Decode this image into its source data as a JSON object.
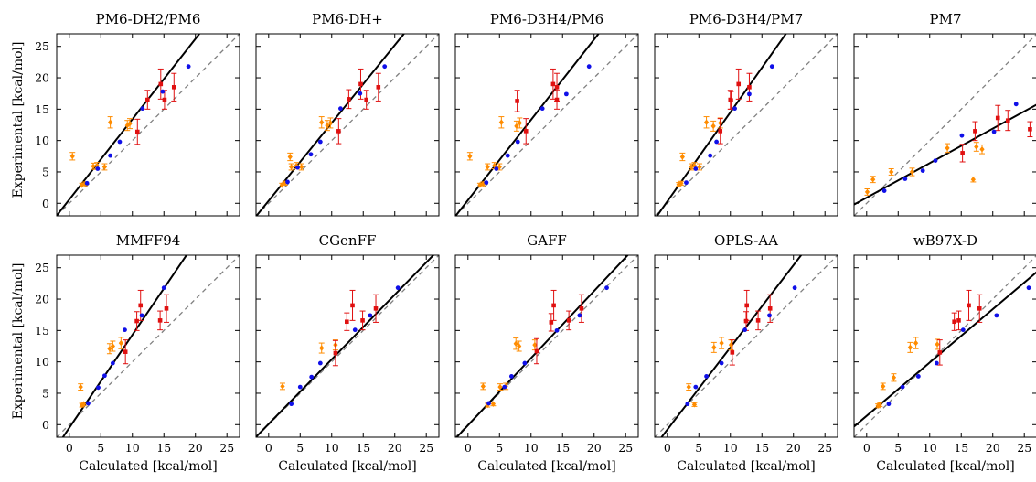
{
  "figure": {
    "ylabel": "Experimental [kcal/mol]",
    "xlabel": "Calculated [kcal/mol]"
  },
  "chart_data": {
    "type": "scatter",
    "xlim": [
      -2,
      27
    ],
    "ylim": [
      -2,
      27
    ],
    "ticks": [
      0,
      5,
      10,
      15,
      20,
      25
    ],
    "series_colors": {
      "blue": "#1010e8",
      "orange": "#ff8c00",
      "red": "#e01010"
    },
    "reference_line": "dashed gray y = x",
    "panels": [
      {
        "title": "PM6-DH2/PM6",
        "fit": {
          "slope": 1.28,
          "intercept": 0.6
        },
        "blue": [
          [
            2.8,
            3.2
          ],
          [
            4.5,
            5.5
          ],
          [
            6.5,
            7.6
          ],
          [
            8.0,
            9.8
          ],
          [
            11.6,
            15.1
          ],
          [
            14.8,
            17.8
          ],
          [
            18.9,
            21.8
          ]
        ],
        "orange": [
          [
            0.5,
            7.5,
            0.6
          ],
          [
            2.0,
            2.9,
            0.3
          ],
          [
            2.5,
            3.1,
            0.3
          ],
          [
            3.8,
            5.9,
            0.5
          ],
          [
            4.4,
            6.0,
            0.5
          ],
          [
            5.6,
            5.8,
            0.5
          ],
          [
            6.5,
            12.9,
            0.9
          ],
          [
            9.2,
            12.4,
            0.8
          ],
          [
            9.6,
            12.7,
            0.8
          ]
        ],
        "red": [
          [
            10.8,
            11.4,
            2.0
          ],
          [
            12.4,
            16.5,
            1.5
          ],
          [
            14.5,
            19.0,
            2.4
          ],
          [
            15.1,
            16.5,
            1.5
          ],
          [
            16.6,
            18.5,
            2.2
          ]
        ]
      },
      {
        "title": "PM6-DH+",
        "fit": {
          "slope": 1.24,
          "intercept": 0.4
        },
        "blue": [
          [
            3.0,
            3.4
          ],
          [
            4.6,
            5.7
          ],
          [
            6.7,
            7.8
          ],
          [
            8.2,
            9.8
          ],
          [
            11.4,
            15.1
          ],
          [
            14.5,
            17.5
          ],
          [
            18.4,
            21.8
          ]
        ],
        "orange": [
          [
            2.1,
            2.9,
            0.3
          ],
          [
            2.6,
            3.2,
            0.3
          ],
          [
            3.4,
            7.4,
            0.6
          ],
          [
            3.6,
            5.8,
            0.5
          ],
          [
            4.4,
            6.0,
            0.5
          ],
          [
            5.2,
            5.8,
            0.5
          ],
          [
            8.4,
            12.9,
            0.9
          ],
          [
            9.3,
            12.4,
            0.8
          ],
          [
            9.8,
            12.8,
            0.8
          ]
        ],
        "red": [
          [
            11.1,
            11.5,
            2.0
          ],
          [
            12.7,
            16.6,
            1.5
          ],
          [
            14.6,
            19.0,
            2.4
          ],
          [
            15.5,
            16.5,
            1.5
          ],
          [
            17.4,
            18.5,
            2.2
          ]
        ]
      },
      {
        "title": "PM6-D3H4/PM6",
        "fit": {
          "slope": 1.28,
          "intercept": 0.5
        },
        "blue": [
          [
            2.9,
            3.3
          ],
          [
            4.5,
            5.5
          ],
          [
            6.3,
            7.6
          ],
          [
            7.9,
            9.8
          ],
          [
            11.8,
            15.1
          ],
          [
            15.6,
            17.4
          ],
          [
            19.2,
            21.8
          ]
        ],
        "orange": [
          [
            0.3,
            7.5,
            0.6
          ],
          [
            1.9,
            2.9,
            0.3
          ],
          [
            2.4,
            3.1,
            0.3
          ],
          [
            3.1,
            5.8,
            0.5
          ],
          [
            4.2,
            6.0,
            0.5
          ],
          [
            5.0,
            5.8,
            0.5
          ],
          [
            5.3,
            12.9,
            0.9
          ],
          [
            7.7,
            12.3,
            0.8
          ],
          [
            8.2,
            12.8,
            0.8
          ]
        ],
        "red": [
          [
            9.2,
            11.5,
            2.0
          ],
          [
            7.8,
            16.3,
            1.7
          ],
          [
            13.5,
            19.0,
            2.4
          ],
          [
            14.1,
            16.5,
            1.5
          ],
          [
            14.1,
            18.5,
            2.2
          ]
        ]
      },
      {
        "title": "PM6-D3H4/PM7",
        "fit": {
          "slope": 1.42,
          "intercept": 0.3
        },
        "blue": [
          [
            3.0,
            3.3
          ],
          [
            4.5,
            5.5
          ],
          [
            6.8,
            7.6
          ],
          [
            7.8,
            9.8
          ],
          [
            10.7,
            15.1
          ],
          [
            13.0,
            17.4
          ],
          [
            16.6,
            21.8
          ]
        ],
        "orange": [
          [
            1.8,
            3.0,
            0.3
          ],
          [
            2.2,
            3.2,
            0.3
          ],
          [
            2.4,
            7.4,
            0.6
          ],
          [
            3.8,
            5.8,
            0.5
          ],
          [
            4.3,
            6.0,
            0.5
          ],
          [
            5.1,
            5.8,
            0.5
          ],
          [
            6.2,
            12.9,
            0.9
          ],
          [
            7.3,
            12.3,
            0.8
          ],
          [
            8.4,
            12.8,
            0.8
          ]
        ],
        "red": [
          [
            8.4,
            11.5,
            2.0
          ],
          [
            10.0,
            16.5,
            1.5
          ],
          [
            11.3,
            19.0,
            2.4
          ],
          [
            10.1,
            16.4,
            1.4
          ],
          [
            13.0,
            18.5,
            2.2
          ]
        ]
      },
      {
        "title": "PM7",
        "fit": {
          "slope": 0.55,
          "intercept": 0.9
        },
        "blue": [
          [
            2.8,
            2.0
          ],
          [
            6.1,
            3.9
          ],
          [
            8.9,
            5.2
          ],
          [
            10.9,
            6.8
          ],
          [
            15.1,
            10.8
          ],
          [
            20.2,
            11.4
          ],
          [
            23.7,
            15.8
          ]
        ],
        "orange": [
          [
            0.1,
            1.8,
            0.5
          ],
          [
            1.0,
            3.8,
            0.5
          ],
          [
            3.9,
            5.0,
            0.5
          ],
          [
            7.2,
            5.0,
            0.6
          ],
          [
            12.8,
            8.8,
            0.7
          ],
          [
            16.9,
            3.8,
            0.4
          ],
          [
            17.4,
            9.0,
            0.7
          ],
          [
            18.3,
            8.6,
            0.7
          ]
        ],
        "red": [
          [
            15.2,
            8.0,
            1.4
          ],
          [
            17.2,
            11.5,
            1.5
          ],
          [
            20.8,
            13.6,
            2.0
          ],
          [
            22.4,
            13.2,
            1.6
          ],
          [
            25.9,
            11.8,
            1.2
          ]
        ]
      },
      {
        "title": "MMFF94",
        "fit": {
          "slope": 1.48,
          "intercept": -0.5
        },
        "blue": [
          [
            3.0,
            3.4
          ],
          [
            4.6,
            5.9
          ],
          [
            5.6,
            7.8
          ],
          [
            6.9,
            9.8
          ],
          [
            8.8,
            15.1
          ],
          [
            11.5,
            17.4
          ],
          [
            15.0,
            21.8
          ]
        ],
        "orange": [
          [
            1.8,
            6.0,
            0.5
          ],
          [
            2.0,
            3.1,
            0.3
          ],
          [
            2.3,
            3.3,
            0.3
          ],
          [
            6.4,
            12.1,
            0.8
          ],
          [
            6.9,
            12.5,
            0.8
          ],
          [
            8.2,
            13.0,
            0.9
          ]
        ],
        "red": [
          [
            8.9,
            11.6,
            1.9
          ],
          [
            10.7,
            16.5,
            1.5
          ],
          [
            11.3,
            19.0,
            2.4
          ],
          [
            14.4,
            16.6,
            1.5
          ],
          [
            15.4,
            18.5,
            2.2
          ]
        ]
      },
      {
        "title": "CGenFF",
        "fit": {
          "slope": 1.03,
          "intercept": 0.1
        },
        "blue": [
          [
            3.6,
            3.3
          ],
          [
            5.0,
            6.0
          ],
          [
            6.8,
            7.6
          ],
          [
            8.2,
            9.8
          ],
          [
            13.7,
            15.1
          ],
          [
            16.1,
            17.4
          ],
          [
            20.5,
            21.8
          ]
        ],
        "orange": [
          [
            2.2,
            6.1,
            0.5
          ],
          [
            8.4,
            12.2,
            0.8
          ],
          [
            10.6,
            12.7,
            0.8
          ]
        ],
        "red": [
          [
            10.6,
            11.4,
            2.0
          ],
          [
            12.4,
            16.4,
            1.4
          ],
          [
            13.3,
            19.0,
            2.4
          ],
          [
            14.9,
            16.6,
            1.5
          ],
          [
            17.0,
            18.5,
            2.2
          ]
        ]
      },
      {
        "title": "GAFF",
        "fit": {
          "slope": 1.07,
          "intercept": -0.1
        },
        "blue": [
          [
            3.3,
            3.4
          ],
          [
            5.8,
            6.0
          ],
          [
            6.9,
            7.7
          ],
          [
            9.0,
            9.8
          ],
          [
            14.1,
            15.0
          ],
          [
            17.7,
            17.4
          ],
          [
            22.0,
            21.8
          ]
        ],
        "orange": [
          [
            2.4,
            6.1,
            0.5
          ],
          [
            3.1,
            3.1,
            0.3
          ],
          [
            4.0,
            3.3,
            0.3
          ],
          [
            5.1,
            6.0,
            0.5
          ],
          [
            6.0,
            6.1,
            0.5
          ],
          [
            7.6,
            12.9,
            0.9
          ],
          [
            8.1,
            12.5,
            0.8
          ],
          [
            10.6,
            12.7,
            0.8
          ]
        ],
        "red": [
          [
            10.9,
            11.7,
            2.0
          ],
          [
            13.2,
            16.3,
            1.4
          ],
          [
            13.6,
            19.0,
            2.4
          ],
          [
            16.0,
            16.6,
            1.5
          ],
          [
            18.0,
            18.5,
            2.2
          ]
        ]
      },
      {
        "title": "OPLS-AA",
        "fit": {
          "slope": 1.31,
          "intercept": -0.8
        },
        "blue": [
          [
            3.2,
            3.3
          ],
          [
            4.5,
            6.0
          ],
          [
            6.2,
            7.7
          ],
          [
            8.6,
            9.8
          ],
          [
            12.3,
            15.1
          ],
          [
            16.2,
            17.4
          ],
          [
            20.2,
            21.8
          ]
        ],
        "orange": [
          [
            3.4,
            6.0,
            0.5
          ],
          [
            4.3,
            3.2,
            0.3
          ],
          [
            7.4,
            12.3,
            0.8
          ],
          [
            8.6,
            13.0,
            0.9
          ],
          [
            10.1,
            12.7,
            0.8
          ]
        ],
        "red": [
          [
            10.3,
            11.5,
            2.0
          ],
          [
            12.5,
            16.5,
            1.5
          ],
          [
            12.6,
            19.0,
            2.4
          ],
          [
            14.4,
            16.6,
            1.5
          ],
          [
            16.3,
            18.5,
            2.2
          ]
        ]
      },
      {
        "title": "wB97X-D",
        "fit": {
          "slope": 0.85,
          "intercept": 1.4
        },
        "blue": [
          [
            3.5,
            3.3
          ],
          [
            5.7,
            6.0
          ],
          [
            8.2,
            7.7
          ],
          [
            11.1,
            9.8
          ],
          [
            15.3,
            15.1
          ],
          [
            20.6,
            17.4
          ],
          [
            25.7,
            21.8
          ]
        ],
        "orange": [
          [
            1.8,
            3.0,
            0.3
          ],
          [
            2.1,
            3.2,
            0.3
          ],
          [
            2.6,
            6.1,
            0.5
          ],
          [
            4.3,
            7.5,
            0.6
          ],
          [
            6.9,
            12.3,
            0.8
          ],
          [
            7.8,
            13.0,
            0.9
          ],
          [
            11.2,
            12.8,
            0.8
          ]
        ],
        "red": [
          [
            11.6,
            11.5,
            2.0
          ],
          [
            13.9,
            16.4,
            1.4
          ],
          [
            14.6,
            16.6,
            1.5
          ],
          [
            16.2,
            19.0,
            2.4
          ],
          [
            17.9,
            18.5,
            2.2
          ]
        ]
      }
    ]
  }
}
